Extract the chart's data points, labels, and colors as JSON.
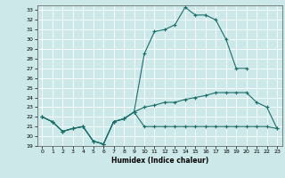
{
  "xlabel": "Humidex (Indice chaleur)",
  "bg_color": "#cce8e8",
  "line_color": "#1a6e6a",
  "grid_color": "#ffffff",
  "xlim": [
    -0.5,
    23.5
  ],
  "ylim": [
    19,
    33.5
  ],
  "xticks": [
    0,
    1,
    2,
    3,
    4,
    5,
    6,
    7,
    8,
    9,
    10,
    11,
    12,
    13,
    14,
    15,
    16,
    17,
    18,
    19,
    20,
    21,
    22,
    23
  ],
  "yticks": [
    19,
    20,
    21,
    22,
    23,
    24,
    25,
    26,
    27,
    28,
    29,
    30,
    31,
    32,
    33
  ],
  "line1_x": [
    0,
    1,
    2,
    3,
    4,
    5,
    6,
    7,
    8,
    9,
    10,
    11,
    12,
    13,
    14,
    15,
    16,
    17,
    18,
    19,
    20
  ],
  "line1_y": [
    22,
    21.5,
    20.5,
    20.8,
    21.0,
    19.5,
    19.2,
    21.5,
    21.8,
    22.5,
    28.5,
    30.8,
    31.0,
    31.5,
    33.3,
    32.5,
    32.5,
    32.0,
    30.0,
    27.0,
    27.0
  ],
  "line2_x": [
    0,
    1,
    2,
    3,
    4,
    5,
    6,
    7,
    8,
    9,
    10,
    11,
    12,
    13,
    14,
    15,
    16,
    17,
    18,
    19,
    20,
    21,
    22,
    23
  ],
  "line2_y": [
    22,
    21.5,
    20.5,
    20.8,
    21.0,
    19.5,
    19.2,
    21.5,
    21.8,
    22.5,
    21.0,
    21.0,
    21.0,
    21.0,
    21.0,
    21.0,
    21.0,
    21.0,
    21.0,
    21.0,
    21.0,
    21.0,
    21.0,
    20.8
  ],
  "line3_x": [
    0,
    1,
    2,
    3,
    4,
    5,
    6,
    7,
    8,
    9,
    10,
    11,
    12,
    13,
    14,
    15,
    16,
    17,
    18,
    19,
    20,
    21,
    22,
    23
  ],
  "line3_y": [
    22,
    21.5,
    20.5,
    20.8,
    21.0,
    19.5,
    19.2,
    21.5,
    21.8,
    22.5,
    23.0,
    23.2,
    23.5,
    23.5,
    23.8,
    24.0,
    24.2,
    24.5,
    24.5,
    24.5,
    24.5,
    23.5,
    23.0,
    20.8
  ]
}
